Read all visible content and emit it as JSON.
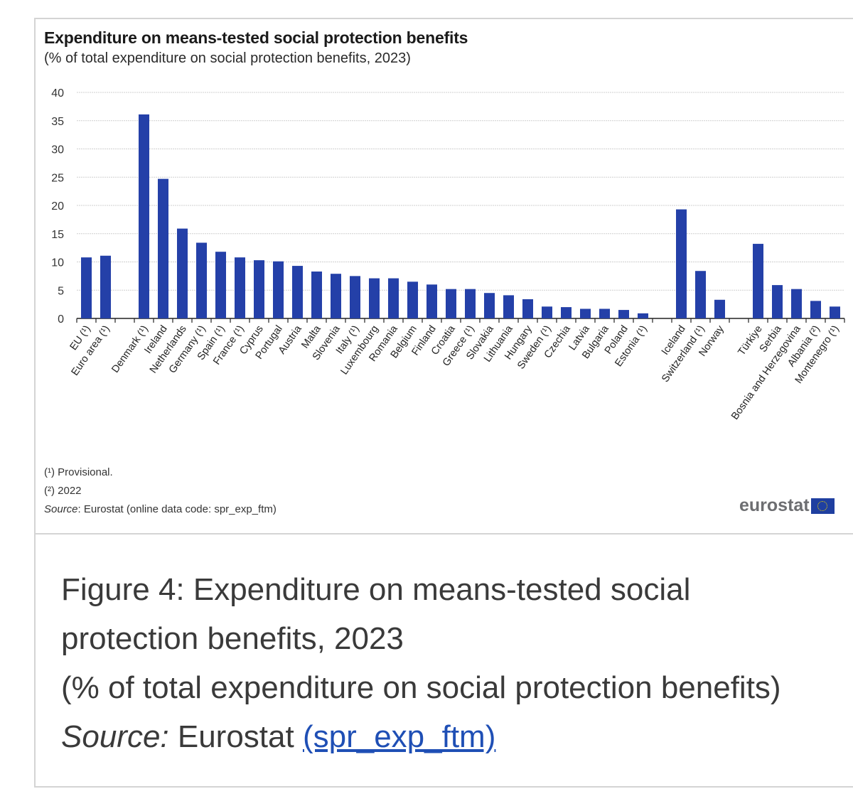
{
  "chart_data": {
    "type": "bar",
    "title": "Expenditure on means-tested social protection benefits",
    "subtitle": "(% of total expenditure on social protection benefits, 2023)",
    "xlabel": "",
    "ylabel": "",
    "ylim": [
      0,
      40
    ],
    "yticks": [
      0,
      5,
      10,
      15,
      20,
      25,
      30,
      35,
      40
    ],
    "grid": true,
    "legend": "none",
    "bar_color": "#2440a8",
    "categories": [
      "EU (¹)",
      "Euro area (¹)",
      "",
      "Denmark (¹)",
      "Ireland",
      "Netherlands",
      "Germany (¹)",
      "Spain (¹)",
      "France (¹)",
      "Cyprus",
      "Portugal",
      "Austria",
      "Malta",
      "Slovenia",
      "Italy (¹)",
      "Luxembourg",
      "Romania",
      "Belgium",
      "Finland",
      "Croatia",
      "Greece (¹)",
      "Slovakia",
      "Lithuania",
      "Hungary",
      "Sweden (¹)",
      "Czechia",
      "Latvia",
      "Bulgaria",
      "Poland",
      "Estonia (¹)",
      "",
      "Iceland",
      "Switzerland (¹)",
      "Norway",
      "",
      "Türkiye",
      "Serbia",
      "Bosnia and Herzegovina",
      "Albania (²)",
      "Montenegro (¹)"
    ],
    "values": [
      10.8,
      11.1,
      null,
      36.1,
      24.7,
      15.9,
      13.4,
      11.8,
      10.8,
      10.3,
      10.1,
      9.3,
      8.3,
      7.9,
      7.5,
      7.1,
      7.1,
      6.5,
      6.0,
      5.2,
      5.2,
      4.5,
      4.1,
      3.4,
      2.1,
      2.0,
      1.7,
      1.7,
      1.5,
      0.9,
      null,
      19.3,
      8.4,
      3.3,
      null,
      13.2,
      5.9,
      5.2,
      3.1,
      2.1
    ]
  },
  "notes": {
    "note1": "(¹) Provisional.",
    "note2": "(²) 2022",
    "source_label": "Source",
    "source_text": ": Eurostat (online data code: spr_exp_ftm)"
  },
  "logo": {
    "text": "eurostat"
  },
  "caption": {
    "line1": "Figure 4: Expenditure on means-tested social",
    "line2": "protection benefits, 2023",
    "line3": "(% of total expenditure on social protection benefits)",
    "source_label": "Source:",
    "source_text": " Eurostat ",
    "link_text": "(spr_exp_ftm)"
  }
}
